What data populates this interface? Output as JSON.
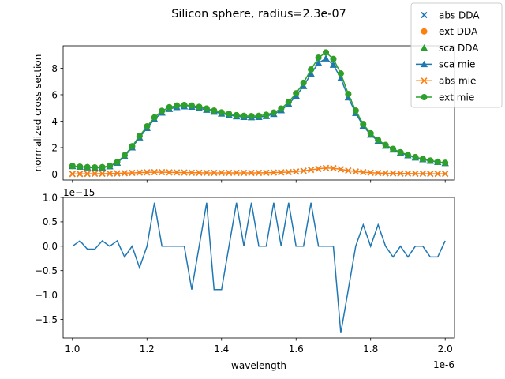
{
  "title": "Silicon sphere, radius=2.3e-07",
  "colors": {
    "blue": "#1f77b4",
    "orange": "#ff7f0e",
    "green": "#2ca02c"
  },
  "chart_data": [
    {
      "type": "line",
      "ylabel": "normalized cross section",
      "xlim": [
        0.975,
        2.025
      ],
      "ylim": [
        -0.45,
        9.7
      ],
      "x_scale_label": "1e-6",
      "yticks": [
        0,
        2,
        4,
        6,
        8
      ],
      "yticklabels": [
        "0",
        "2",
        "4",
        "6",
        "8"
      ],
      "xticks": [
        1.0,
        1.2,
        1.4,
        1.6,
        1.8,
        2.0
      ],
      "legend_placement": "upper right (outside axes)",
      "x": [
        1.0,
        1.02,
        1.04,
        1.06,
        1.08,
        1.1,
        1.12,
        1.14,
        1.16,
        1.18,
        1.2,
        1.22,
        1.24,
        1.26,
        1.28,
        1.3,
        1.32,
        1.34,
        1.36,
        1.38,
        1.4,
        1.42,
        1.44,
        1.46,
        1.48,
        1.5,
        1.52,
        1.54,
        1.56,
        1.58,
        1.6,
        1.62,
        1.64,
        1.66,
        1.68,
        1.7,
        1.72,
        1.74,
        1.76,
        1.78,
        1.8,
        1.82,
        1.84,
        1.86,
        1.88,
        1.9,
        1.92,
        1.94,
        1.96,
        1.98,
        2.0
      ],
      "series": [
        {
          "name": "abs DDA",
          "marker": "x",
          "line": false,
          "color": "blue",
          "values": [
            0.01,
            0.01,
            0.02,
            0.03,
            0.03,
            0.04,
            0.05,
            0.07,
            0.09,
            0.11,
            0.13,
            0.14,
            0.14,
            0.13,
            0.12,
            0.11,
            0.1,
            0.1,
            0.09,
            0.09,
            0.09,
            0.09,
            0.09,
            0.09,
            0.09,
            0.09,
            0.1,
            0.11,
            0.13,
            0.15,
            0.19,
            0.25,
            0.32,
            0.4,
            0.46,
            0.44,
            0.36,
            0.26,
            0.19,
            0.14,
            0.1,
            0.08,
            0.06,
            0.05,
            0.04,
            0.04,
            0.03,
            0.03,
            0.02,
            0.02,
            0.02
          ]
        },
        {
          "name": "ext DDA",
          "marker": "o",
          "line": false,
          "color": "orange",
          "values": [
            0.61,
            0.56,
            0.52,
            0.5,
            0.52,
            0.62,
            0.9,
            1.42,
            2.1,
            2.88,
            3.6,
            4.28,
            4.78,
            5.05,
            5.18,
            5.22,
            5.18,
            5.08,
            4.95,
            4.8,
            4.66,
            4.55,
            4.45,
            4.4,
            4.38,
            4.4,
            4.48,
            4.65,
            4.95,
            5.45,
            6.1,
            6.9,
            7.9,
            8.8,
            9.2,
            8.7,
            7.6,
            6.05,
            4.8,
            3.78,
            3.08,
            2.58,
            2.2,
            1.9,
            1.65,
            1.45,
            1.28,
            1.14,
            1.02,
            0.93,
            0.85
          ]
        },
        {
          "name": "sca DDA",
          "marker": "^",
          "line": false,
          "color": "green",
          "values": [
            0.6,
            0.55,
            0.5,
            0.47,
            0.49,
            0.58,
            0.85,
            1.35,
            2.01,
            2.77,
            3.47,
            4.14,
            4.64,
            4.92,
            5.06,
            5.11,
            5.08,
            4.98,
            4.86,
            4.71,
            4.57,
            4.46,
            4.36,
            4.31,
            4.29,
            4.31,
            4.38,
            4.54,
            4.82,
            5.3,
            5.91,
            6.65,
            7.58,
            8.4,
            8.74,
            8.26,
            7.24,
            5.79,
            4.61,
            3.64,
            2.98,
            2.5,
            2.14,
            1.85,
            1.61,
            1.41,
            1.25,
            1.11,
            1.0,
            0.91,
            0.83
          ]
        },
        {
          "name": "sca mie",
          "marker": "^",
          "line": true,
          "color": "blue",
          "values": [
            0.6,
            0.55,
            0.5,
            0.47,
            0.49,
            0.58,
            0.85,
            1.35,
            2.01,
            2.77,
            3.47,
            4.14,
            4.64,
            4.92,
            5.06,
            5.11,
            5.08,
            4.98,
            4.86,
            4.71,
            4.57,
            4.46,
            4.36,
            4.31,
            4.29,
            4.31,
            4.38,
            4.54,
            4.82,
            5.3,
            5.91,
            6.65,
            7.58,
            8.4,
            8.74,
            8.26,
            7.24,
            5.79,
            4.61,
            3.64,
            2.98,
            2.5,
            2.14,
            1.85,
            1.61,
            1.41,
            1.25,
            1.11,
            1.0,
            0.91,
            0.83
          ]
        },
        {
          "name": "abs mie",
          "marker": "x",
          "line": true,
          "color": "orange",
          "values": [
            0.01,
            0.01,
            0.02,
            0.03,
            0.03,
            0.04,
            0.05,
            0.07,
            0.09,
            0.11,
            0.13,
            0.14,
            0.14,
            0.13,
            0.12,
            0.11,
            0.1,
            0.1,
            0.09,
            0.09,
            0.09,
            0.09,
            0.09,
            0.09,
            0.09,
            0.09,
            0.1,
            0.11,
            0.13,
            0.15,
            0.19,
            0.25,
            0.32,
            0.4,
            0.46,
            0.44,
            0.36,
            0.26,
            0.19,
            0.14,
            0.1,
            0.08,
            0.06,
            0.05,
            0.04,
            0.04,
            0.03,
            0.03,
            0.02,
            0.02,
            0.02
          ]
        },
        {
          "name": "ext mie",
          "marker": "o",
          "line": true,
          "color": "green",
          "values": [
            0.61,
            0.56,
            0.52,
            0.5,
            0.52,
            0.62,
            0.9,
            1.42,
            2.1,
            2.88,
            3.6,
            4.28,
            4.78,
            5.05,
            5.18,
            5.22,
            5.18,
            5.08,
            4.95,
            4.8,
            4.66,
            4.55,
            4.45,
            4.4,
            4.38,
            4.4,
            4.48,
            4.65,
            4.95,
            5.45,
            6.1,
            6.9,
            7.9,
            8.8,
            9.2,
            8.7,
            7.6,
            6.05,
            4.8,
            3.78,
            3.08,
            2.58,
            2.2,
            1.9,
            1.65,
            1.45,
            1.28,
            1.14,
            1.02,
            0.93,
            0.85
          ]
        }
      ]
    },
    {
      "type": "line",
      "xlabel": "wavelength",
      "xlim": [
        0.975,
        2.025
      ],
      "ylim": [
        -1.88,
        1.0
      ],
      "x_scale_label": "1e-6",
      "y_scale_label": "1e−15",
      "xticks": [
        1.0,
        1.2,
        1.4,
        1.6,
        1.8,
        2.0
      ],
      "xticklabels": [
        "1.0",
        "1.2",
        "1.4",
        "1.6",
        "1.8",
        "2.0"
      ],
      "yticks": [
        1.0,
        0.5,
        0.0,
        -0.5,
        -1.0,
        -1.5
      ],
      "yticklabels": [
        "1.0",
        "0.5",
        "0.0",
        "−0.5",
        "−1.0",
        "−1.5"
      ],
      "x": [
        1.0,
        1.02,
        1.04,
        1.06,
        1.08,
        1.1,
        1.12,
        1.14,
        1.16,
        1.18,
        1.2,
        1.22,
        1.24,
        1.26,
        1.28,
        1.3,
        1.32,
        1.34,
        1.36,
        1.38,
        1.4,
        1.42,
        1.44,
        1.46,
        1.48,
        1.5,
        1.52,
        1.54,
        1.56,
        1.58,
        1.6,
        1.62,
        1.64,
        1.66,
        1.68,
        1.7,
        1.72,
        1.74,
        1.76,
        1.78,
        1.8,
        1.82,
        1.84,
        1.86,
        1.88,
        1.9,
        1.92,
        1.94,
        1.96,
        1.98,
        2.0
      ],
      "series": [
        {
          "color": "blue",
          "values": [
            0,
            0.11,
            -0.06,
            -0.06,
            0.11,
            0,
            0.11,
            -0.22,
            0,
            -0.44,
            0,
            0.89,
            0,
            0,
            0,
            0,
            -0.89,
            0,
            0.89,
            -0.89,
            -0.89,
            0,
            0.89,
            0,
            0.89,
            0,
            0,
            0.89,
            0,
            0.89,
            0,
            0,
            0.89,
            0,
            0,
            0,
            -1.78,
            -0.89,
            0,
            0.44,
            0,
            0.44,
            0,
            -0.22,
            0,
            -0.22,
            0,
            0,
            -0.22,
            -0.22,
            0.11
          ]
        }
      ]
    }
  ]
}
